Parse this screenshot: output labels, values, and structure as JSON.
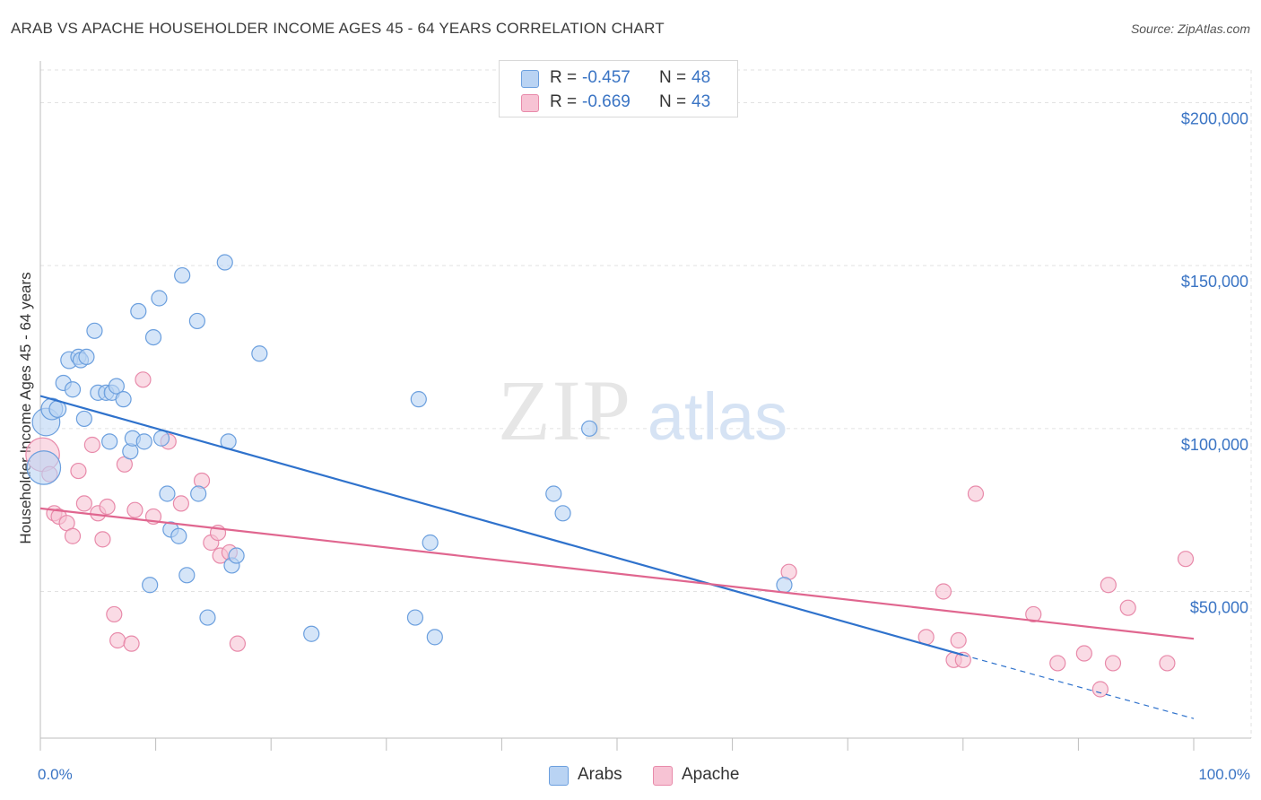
{
  "title": "ARAB VS APACHE HOUSEHOLDER INCOME AGES 45 - 64 YEARS CORRELATION CHART",
  "source": "Source: ZipAtlas.com",
  "watermark": {
    "zip": "ZIP",
    "atlas": "atlas"
  },
  "colors": {
    "arabs_fill": "#b9d3f3",
    "arabs_stroke": "#6b9fde",
    "arabs_line": "#2f72cc",
    "apache_fill": "#f7c3d4",
    "apache_stroke": "#e88aaa",
    "apache_line": "#e0668f",
    "grid": "#e2e2e2",
    "axis_text": "#3a74c4"
  },
  "legend": {
    "arabs": {
      "r_label": "R =",
      "r_value": "-0.457",
      "n_label": "N =",
      "n_value": "48"
    },
    "apache": {
      "r_label": "R =",
      "r_value": "-0.669",
      "n_label": "N =",
      "n_value": "43"
    }
  },
  "bottom_legend": {
    "arabs": "Arabs",
    "apache": "Apache"
  },
  "chart_data": {
    "type": "scatter",
    "xlabel": "",
    "ylabel": "Householder Income Ages 45 - 64 years",
    "xlim": [
      0,
      100
    ],
    "ylim": [
      5000,
      215000
    ],
    "x_tick_labels": [
      "0.0%",
      "100.0%"
    ],
    "y_ticks": [
      {
        "value": 50000,
        "label": "$50,000"
      },
      {
        "value": 100000,
        "label": "$100,000"
      },
      {
        "value": 150000,
        "label": "$150,000"
      },
      {
        "value": 200000,
        "label": "$200,000"
      }
    ],
    "grid": true,
    "legend_position": "top-center",
    "series": [
      {
        "name": "Arabs",
        "regression": {
          "x0": 0,
          "y0": 110000,
          "x1": 80,
          "y1": 30500,
          "dash_x1": 100,
          "dash_y1": 11000
        },
        "points": [
          [
            0.3,
            88000,
            2.2
          ],
          [
            0.5,
            102000,
            1.8
          ],
          [
            1,
            106000,
            1.4
          ],
          [
            1.5,
            106000,
            1.1
          ],
          [
            2,
            114000,
            1
          ],
          [
            2.5,
            121000,
            1.1
          ],
          [
            2.8,
            112000,
            1
          ],
          [
            3.3,
            122000,
            1
          ],
          [
            3.5,
            121000,
            1
          ],
          [
            4,
            122000,
            1
          ],
          [
            3.8,
            103000,
            1
          ],
          [
            4.7,
            130000,
            1
          ],
          [
            5,
            111000,
            1
          ],
          [
            5.7,
            111000,
            1
          ],
          [
            6.2,
            111000,
            1
          ],
          [
            6,
            96000,
            1
          ],
          [
            6.6,
            113000,
            1
          ],
          [
            7.2,
            109000,
            1
          ],
          [
            7.8,
            93000,
            1
          ],
          [
            8,
            97000,
            1
          ],
          [
            8.5,
            136000,
            1
          ],
          [
            9,
            96000,
            1
          ],
          [
            9.5,
            52000,
            1
          ],
          [
            9.8,
            128000,
            1
          ],
          [
            10.3,
            140000,
            1
          ],
          [
            10.5,
            97000,
            1
          ],
          [
            11,
            80000,
            1
          ],
          [
            11.3,
            69000,
            1
          ],
          [
            12,
            67000,
            1
          ],
          [
            12.3,
            147000,
            1
          ],
          [
            12.7,
            55000,
            1
          ],
          [
            13.6,
            133000,
            1
          ],
          [
            13.7,
            80000,
            1
          ],
          [
            14.5,
            42000,
            1
          ],
          [
            16,
            151000,
            1
          ],
          [
            16.3,
            96000,
            1
          ],
          [
            16.6,
            58000,
            1
          ],
          [
            17,
            61000,
            1
          ],
          [
            19,
            123000,
            1
          ],
          [
            23.5,
            37000,
            1
          ],
          [
            32.5,
            42000,
            1
          ],
          [
            32.8,
            109000,
            1
          ],
          [
            33.8,
            65000,
            1
          ],
          [
            34.2,
            36000,
            1
          ],
          [
            44.5,
            80000,
            1
          ],
          [
            45.3,
            74000,
            1
          ],
          [
            47.6,
            100000,
            1
          ],
          [
            64.5,
            52000,
            1
          ]
        ]
      },
      {
        "name": "Apache",
        "regression": {
          "x0": 0,
          "y0": 75500,
          "x1": 100,
          "y1": 35500
        },
        "points": [
          [
            0.2,
            92000,
            2.2
          ],
          [
            0.8,
            86000,
            1
          ],
          [
            1.2,
            74000,
            1
          ],
          [
            1.6,
            73000,
            1
          ],
          [
            2.3,
            71000,
            1
          ],
          [
            2.8,
            67000,
            1
          ],
          [
            3.3,
            87000,
            1
          ],
          [
            3.8,
            77000,
            1
          ],
          [
            4.5,
            95000,
            1
          ],
          [
            5,
            74000,
            1
          ],
          [
            5.4,
            66000,
            1
          ],
          [
            5.8,
            76000,
            1
          ],
          [
            6.4,
            43000,
            1
          ],
          [
            6.7,
            35000,
            1
          ],
          [
            7.3,
            89000,
            1
          ],
          [
            7.9,
            34000,
            1
          ],
          [
            8.2,
            75000,
            1
          ],
          [
            8.9,
            115000,
            1
          ],
          [
            9.8,
            73000,
            1
          ],
          [
            11.1,
            96000,
            1
          ],
          [
            12.2,
            77000,
            1
          ],
          [
            14,
            84000,
            1
          ],
          [
            14.8,
            65000,
            1
          ],
          [
            15.4,
            68000,
            1
          ],
          [
            15.6,
            61000,
            1
          ],
          [
            16.4,
            62000,
            1
          ],
          [
            17.1,
            34000,
            1
          ],
          [
            64.9,
            56000,
            1
          ],
          [
            76.8,
            36000,
            1
          ],
          [
            78.3,
            50000,
            1
          ],
          [
            79.2,
            29000,
            1
          ],
          [
            79.6,
            35000,
            1
          ],
          [
            80,
            29000,
            1
          ],
          [
            81.1,
            80000,
            1
          ],
          [
            86.1,
            43000,
            1
          ],
          [
            88.2,
            28000,
            1
          ],
          [
            90.5,
            31000,
            1
          ],
          [
            91.9,
            20000,
            1
          ],
          [
            92.6,
            52000,
            1
          ],
          [
            93,
            28000,
            1
          ],
          [
            94.3,
            45000,
            1
          ],
          [
            97.7,
            28000,
            1
          ],
          [
            99.3,
            60000,
            1
          ]
        ]
      }
    ]
  }
}
